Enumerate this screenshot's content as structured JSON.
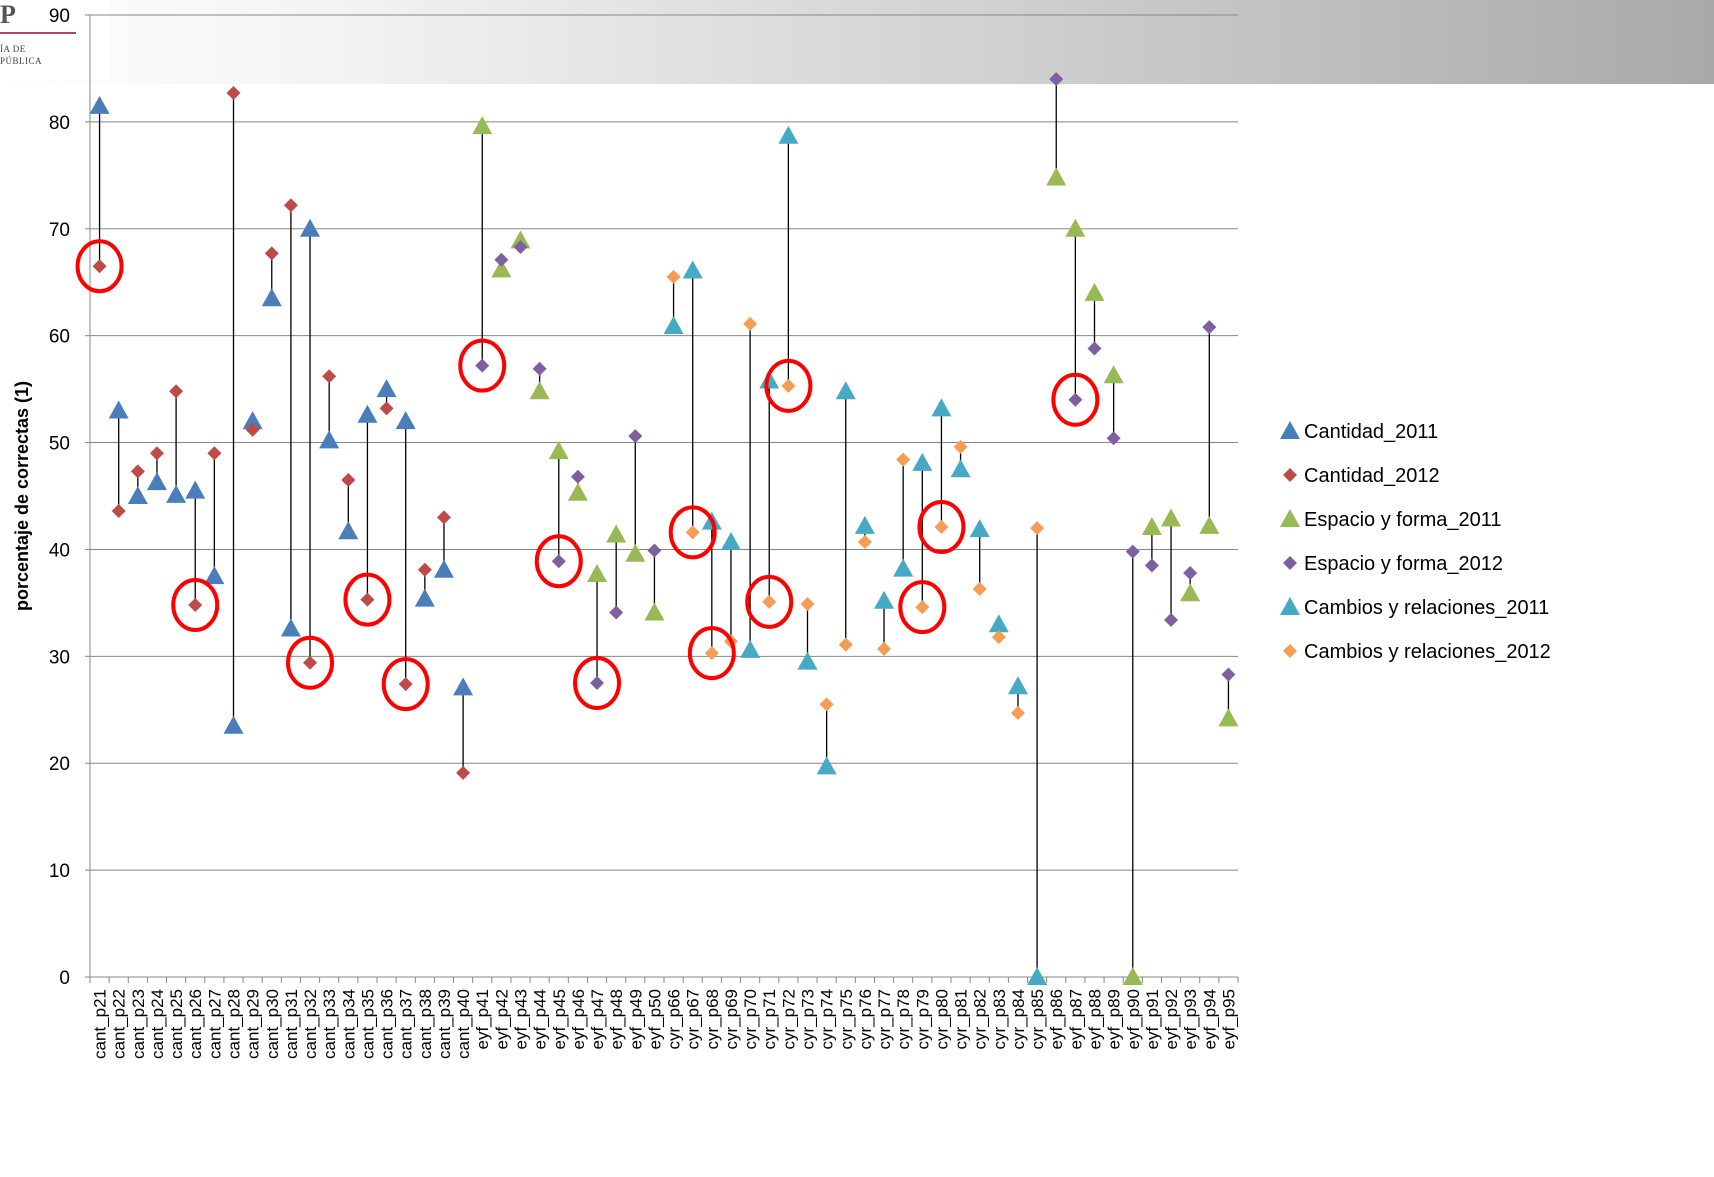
{
  "logo": {
    "big": "P",
    "line1": "ÍA DE",
    "line2": "PÚBLICA"
  },
  "chart_data": {
    "type": "scatter",
    "title": "",
    "xlabel": "",
    "ylabel": "porcentaje de correctas (1)",
    "ylim": [
      0,
      90
    ],
    "yticks": [
      0,
      10,
      20,
      30,
      40,
      50,
      60,
      70,
      80,
      90
    ],
    "grid": true,
    "legend_position": "right",
    "categories": [
      "cant_p21",
      "cant_p22",
      "cant_p23",
      "cant_p24",
      "cant_p25",
      "cant_p26",
      "cant_p27",
      "cant_p28",
      "cant_p29",
      "cant_p30",
      "cant_p31",
      "cant_p32",
      "cant_p33",
      "cant_p34",
      "cant_p35",
      "cant_p36",
      "cant_p37",
      "cant_p38",
      "cant_p39",
      "cant_p40",
      "eyf_p41",
      "eyf_p42",
      "eyf_p43",
      "eyf_p44",
      "eyf_p45",
      "eyf_p46",
      "eyf_p47",
      "eyf_p48",
      "eyf_p49",
      "eyf_p50",
      "cyr_p66",
      "cyr_p67",
      "cyr_p68",
      "cyr_p69",
      "cyr_p70",
      "cyr_p71",
      "cyr_p72",
      "cyr_p73",
      "cyr_p74",
      "cyr_p75",
      "cyr_p76",
      "cyr_p77",
      "cyr_p78",
      "cyr_p79",
      "cyr_p80",
      "cyr_p81",
      "cyr_p82",
      "cyr_p83",
      "cyr_p84",
      "cyr_p85",
      "eyf_p86",
      "eyf_p87",
      "eyf_p88",
      "eyf_p89",
      "eyf_p90",
      "eyf_p91",
      "eyf_p92",
      "eyf_p93",
      "eyf_p94",
      "eyf_p95"
    ],
    "series": [
      {
        "name": "Cantidad_2011",
        "marker": "triangle",
        "color": "#4a7ebb",
        "points": [
          [
            "cant_p21",
            81.5
          ],
          [
            "cant_p22",
            53
          ],
          [
            "cant_p23",
            45
          ],
          [
            "cant_p24",
            46.3
          ],
          [
            "cant_p25",
            45.1
          ],
          [
            "cant_p26",
            45.5
          ],
          [
            "cant_p27",
            37.5
          ],
          [
            "cant_p28",
            23.5
          ],
          [
            "cant_p29",
            52
          ],
          [
            "cant_p30",
            63.5
          ],
          [
            "cant_p31",
            32.6
          ],
          [
            "cant_p32",
            70
          ],
          [
            "cant_p33",
            50.2
          ],
          [
            "cant_p34",
            41.7
          ],
          [
            "cant_p35",
            52.6
          ],
          [
            "cant_p36",
            55
          ],
          [
            "cant_p37",
            52
          ],
          [
            "cant_p38",
            35.4
          ],
          [
            "cant_p39",
            38.1
          ],
          [
            "cant_p40",
            27.1
          ]
        ]
      },
      {
        "name": "Cantidad_2012",
        "marker": "diamond",
        "color": "#be4b48",
        "points": [
          [
            "cant_p21",
            66.5
          ],
          [
            "cant_p22",
            43.6
          ],
          [
            "cant_p23",
            47.3
          ],
          [
            "cant_p24",
            49
          ],
          [
            "cant_p25",
            54.8
          ],
          [
            "cant_p26",
            34.8
          ],
          [
            "cant_p27",
            49
          ],
          [
            "cant_p28",
            82.7
          ],
          [
            "cant_p29",
            51.2
          ],
          [
            "cant_p30",
            67.7
          ],
          [
            "cant_p31",
            72.2
          ],
          [
            "cant_p32",
            29.4
          ],
          [
            "cant_p33",
            56.2
          ],
          [
            "cant_p34",
            46.5
          ],
          [
            "cant_p35",
            35.3
          ],
          [
            "cant_p36",
            53.2
          ],
          [
            "cant_p37",
            27.4
          ],
          [
            "cant_p38",
            38.1
          ],
          [
            "cant_p39",
            43
          ],
          [
            "cant_p40",
            19.1
          ]
        ]
      },
      {
        "name": "Espacio y forma_2011",
        "marker": "triangle",
        "color": "#98b954",
        "points": [
          [
            "eyf_p41",
            79.6
          ],
          [
            "eyf_p42",
            66.2
          ],
          [
            "eyf_p43",
            68.9
          ],
          [
            "eyf_p44",
            54.8
          ],
          [
            "eyf_p45",
            49.2
          ],
          [
            "eyf_p46",
            45.3
          ],
          [
            "eyf_p47",
            37.7
          ],
          [
            "eyf_p48",
            41.4
          ],
          [
            "eyf_p49",
            39.6
          ],
          [
            "eyf_p50",
            34.1
          ],
          [
            "eyf_p86",
            74.8
          ],
          [
            "eyf_p87",
            70
          ],
          [
            "eyf_p88",
            64
          ],
          [
            "eyf_p89",
            56.3
          ],
          [
            "eyf_p90",
            0
          ],
          [
            "eyf_p91",
            42.1
          ],
          [
            "eyf_p92",
            42.9
          ],
          [
            "eyf_p93",
            35.9
          ],
          [
            "eyf_p94",
            42.2
          ],
          [
            "eyf_p95",
            24.2
          ]
        ]
      },
      {
        "name": "Espacio y forma_2012",
        "marker": "diamond",
        "color": "#7d60a0",
        "points": [
          [
            "eyf_p41",
            57.2
          ],
          [
            "eyf_p42",
            67.1
          ],
          [
            "eyf_p43",
            68.3
          ],
          [
            "eyf_p44",
            56.9
          ],
          [
            "eyf_p45",
            38.9
          ],
          [
            "eyf_p46",
            46.8
          ],
          [
            "eyf_p47",
            27.5
          ],
          [
            "eyf_p48",
            34.1
          ],
          [
            "eyf_p49",
            50.6
          ],
          [
            "eyf_p50",
            39.9
          ],
          [
            "eyf_p86",
            84
          ],
          [
            "eyf_p87",
            54
          ],
          [
            "eyf_p88",
            58.8
          ],
          [
            "eyf_p89",
            50.4
          ],
          [
            "eyf_p90",
            39.8
          ],
          [
            "eyf_p91",
            38.5
          ],
          [
            "eyf_p92",
            33.4
          ],
          [
            "eyf_p93",
            37.8
          ],
          [
            "eyf_p94",
            60.8
          ],
          [
            "eyf_p95",
            28.3
          ]
        ]
      },
      {
        "name": "Cambios y relaciones_2011",
        "marker": "triangle",
        "color": "#46aac5",
        "points": [
          [
            "cyr_p66",
            60.9
          ],
          [
            "cyr_p67",
            66.1
          ],
          [
            "cyr_p68",
            42.6
          ],
          [
            "cyr_p69",
            40.7
          ],
          [
            "cyr_p70",
            30.6
          ],
          [
            "cyr_p71",
            55.8
          ],
          [
            "cyr_p72",
            78.7
          ],
          [
            "cyr_p73",
            29.5
          ],
          [
            "cyr_p74",
            19.7
          ],
          [
            "cyr_p75",
            54.8
          ],
          [
            "cyr_p76",
            42.2
          ],
          [
            "cyr_p77",
            35.2
          ],
          [
            "cyr_p78",
            38.2
          ],
          [
            "cyr_p79",
            48.1
          ],
          [
            "cyr_p80",
            53.2
          ],
          [
            "cyr_p81",
            47.5
          ],
          [
            "cyr_p82",
            41.9
          ],
          [
            "cyr_p83",
            33
          ],
          [
            "cyr_p84",
            27.2
          ],
          [
            "cyr_p85",
            0
          ]
        ]
      },
      {
        "name": "Cambios y relaciones_2012",
        "marker": "diamond",
        "color": "#f59d56",
        "points": [
          [
            "cyr_p66",
            65.5
          ],
          [
            "cyr_p67",
            41.6
          ],
          [
            "cyr_p68",
            30.3
          ],
          [
            "cyr_p69",
            31.4
          ],
          [
            "cyr_p70",
            61.1
          ],
          [
            "cyr_p71",
            35.1
          ],
          [
            "cyr_p72",
            55.3
          ],
          [
            "cyr_p73",
            34.9
          ],
          [
            "cyr_p74",
            25.5
          ],
          [
            "cyr_p75",
            31.1
          ],
          [
            "cyr_p76",
            40.7
          ],
          [
            "cyr_p77",
            30.7
          ],
          [
            "cyr_p78",
            48.4
          ],
          [
            "cyr_p79",
            34.6
          ],
          [
            "cyr_p80",
            42.1
          ],
          [
            "cyr_p81",
            49.6
          ],
          [
            "cyr_p82",
            36.3
          ],
          [
            "cyr_p83",
            31.8
          ],
          [
            "cyr_p84",
            24.7
          ],
          [
            "cyr_p85",
            42
          ]
        ]
      }
    ],
    "highlights": [
      [
        "cant_p21",
        66.5
      ],
      [
        "cant_p26",
        34.8
      ],
      [
        "cant_p32",
        29.4
      ],
      [
        "cant_p35",
        35.3
      ],
      [
        "cant_p37",
        27.4
      ],
      [
        "eyf_p41",
        57.2
      ],
      [
        "eyf_p45",
        38.9
      ],
      [
        "eyf_p47",
        27.5
      ],
      [
        "cyr_p67",
        41.6
      ],
      [
        "cyr_p68",
        30.3
      ],
      [
        "cyr_p71",
        35.1
      ],
      [
        "cyr_p72",
        55.3
      ],
      [
        "cyr_p79",
        34.6
      ],
      [
        "cyr_p80",
        42.1
      ],
      [
        "eyf_p87",
        54
      ]
    ],
    "highlight_color": "#ff0000"
  }
}
